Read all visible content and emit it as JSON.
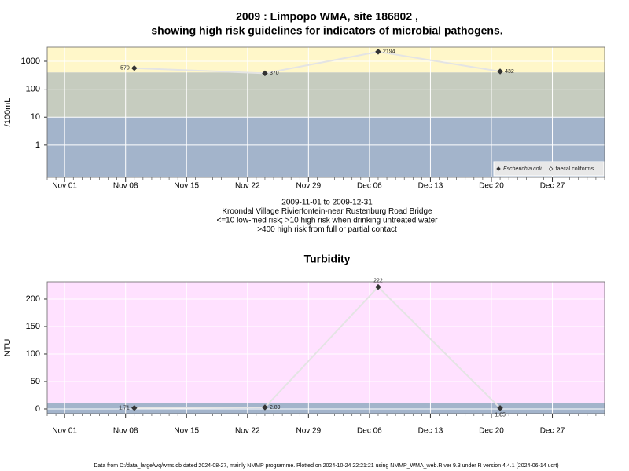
{
  "chart_data": [
    {
      "type": "line",
      "title": "2009 : Limpopo WMA, site 186802 ,",
      "subtitle": "showing high risk guidelines for indicators of microbial pathogens.",
      "y_label": "/100mL",
      "notes": [
        "2009-11-01 to 2009-12-31",
        "Kroondal Village Rivierfontein-near Rustenburg Road Bridge",
        "<=10 low-med risk; >10 high risk when drinking untreated water",
        ">400 high risk from full or partial contact"
      ],
      "x": [
        "2009-11-09",
        "2009-11-24",
        "2009-12-07",
        "2009-12-21"
      ],
      "series": [
        {
          "name": "Escherichia coli",
          "color": "#333333",
          "marker": "filled-diamond",
          "values": [
            570,
            370,
            2194,
            432
          ]
        },
        {
          "name": "faecal coliforms",
          "color": "#333333",
          "marker": "open-diamond",
          "values": [
            null,
            null,
            null,
            null
          ]
        }
      ],
      "line_color": "#e4e4e4",
      "log_y": true,
      "ylim": [
        0.07,
        3200
      ],
      "yticks": [
        1,
        10,
        100,
        1000
      ],
      "xlim": [
        "2009-10-30",
        "2010-01-02"
      ],
      "xticks": [
        {
          "value": "2009-11-01",
          "label": "Nov 01"
        },
        {
          "value": "2009-11-08",
          "label": "Nov 08"
        },
        {
          "value": "2009-11-15",
          "label": "Nov 15"
        },
        {
          "value": "2009-11-22",
          "label": "Nov 22"
        },
        {
          "value": "2009-11-29",
          "label": "Nov 29"
        },
        {
          "value": "2009-12-06",
          "label": "Dec 06"
        },
        {
          "value": "2009-12-13",
          "label": "Dec 13"
        },
        {
          "value": "2009-12-20",
          "label": "Dec 20"
        },
        {
          "value": "2009-12-27",
          "label": "Dec 27"
        }
      ],
      "bands": [
        {
          "from": null,
          "to": 10,
          "color": "#a3b4cb"
        },
        {
          "from": 10,
          "to": 400,
          "color": "#c6ccbf"
        },
        {
          "from": 400,
          "to": null,
          "color": "#fff7c9"
        }
      ],
      "grid": true,
      "legend": "bottom right"
    },
    {
      "type": "line",
      "title": "Turbidity",
      "y_label": "NTU",
      "x": [
        "2009-11-09",
        "2009-11-24",
        "2009-12-07",
        "2009-12-21"
      ],
      "series": [
        {
          "name": "Turbidity",
          "color": "#333333",
          "marker": "filled-diamond",
          "values": [
            1.71,
            2.89,
            222,
            1.65
          ]
        }
      ],
      "line_color": "#e4e4e4",
      "log_y": false,
      "ylim": [
        -8.6,
        231.4
      ],
      "yticks": [
        0,
        50,
        100,
        150,
        200
      ],
      "xlim": [
        "2009-10-30",
        "2010-01-02"
      ],
      "xticks": [
        {
          "value": "2009-11-01",
          "label": "Nov 01"
        },
        {
          "value": "2009-11-08",
          "label": "Nov 08"
        },
        {
          "value": "2009-11-15",
          "label": "Nov 15"
        },
        {
          "value": "2009-11-22",
          "label": "Nov 22"
        },
        {
          "value": "2009-11-29",
          "label": "Nov 29"
        },
        {
          "value": "2009-12-06",
          "label": "Dec 06"
        },
        {
          "value": "2009-12-13",
          "label": "Dec 13"
        },
        {
          "value": "2009-12-20",
          "label": "Dec 20"
        },
        {
          "value": "2009-12-27",
          "label": "Dec 27"
        }
      ],
      "bands": [
        {
          "from": null,
          "to": 10,
          "color": "#a3b4cb"
        },
        {
          "from": 10,
          "to": null,
          "color": "#ffe1ff"
        }
      ],
      "grid": true
    }
  ],
  "footer": "Data from D:/data_large/wq/wms.db dated 2024-08-27, mainly NMMP programme. Plotted on 2024-10-24 22:21:21 using NMMP_WMA_web.R ver 9.3 under R version 4.4.1 (2024-06-14 ucrt)"
}
